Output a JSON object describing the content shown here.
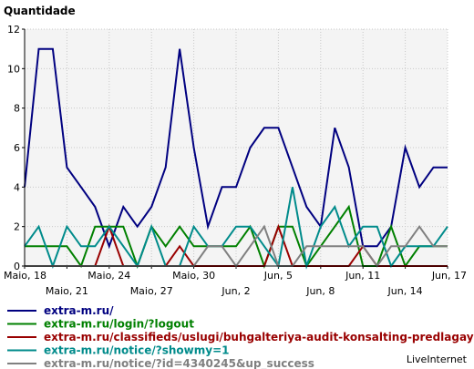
{
  "chart_data": {
    "type": "line",
    "ylabel": "Quantidade",
    "ylim": [
      0,
      12
    ],
    "yticks": [
      0,
      2,
      4,
      6,
      8,
      10,
      12
    ],
    "grid": true,
    "x_count": 31,
    "x_ticks": [
      {
        "index": 0,
        "label": "Maio, 18",
        "row": 1
      },
      {
        "index": 3,
        "label": "Maio, 21",
        "row": 2
      },
      {
        "index": 6,
        "label": "Maio, 24",
        "row": 1
      },
      {
        "index": 9,
        "label": "Maio, 27",
        "row": 2
      },
      {
        "index": 12,
        "label": "Maio, 30",
        "row": 1
      },
      {
        "index": 15,
        "label": "Jun, 2",
        "row": 2
      },
      {
        "index": 18,
        "label": "Jun, 5",
        "row": 1
      },
      {
        "index": 21,
        "label": "Jun, 8",
        "row": 2
      },
      {
        "index": 24,
        "label": "Jun, 11",
        "row": 1
      },
      {
        "index": 27,
        "label": "Jun, 14",
        "row": 2
      },
      {
        "index": 30,
        "label": "Jun, 17",
        "row": 1
      }
    ],
    "legend_placement": "bottom",
    "series": [
      {
        "name": "extra-m.ru/",
        "color": "#000080",
        "values": [
          4,
          11,
          11,
          5,
          4,
          3,
          1,
          3,
          2,
          3,
          5,
          11,
          6,
          2,
          4,
          4,
          6,
          7,
          7,
          5,
          3,
          2,
          7,
          5,
          1,
          1,
          2,
          6,
          4,
          5,
          5
        ]
      },
      {
        "name": "extra-m.ru/login/?logout",
        "color": "#008000",
        "values": [
          1,
          1,
          1,
          1,
          0,
          2,
          2,
          2,
          0,
          2,
          1,
          2,
          1,
          1,
          1,
          1,
          2,
          0,
          2,
          2,
          0,
          1,
          2,
          3,
          0,
          0,
          2,
          0,
          1,
          1,
          1
        ]
      },
      {
        "name": "extra-m.ru/classifieds/uslugi/buhgalteriya-audit-konsalting-predlagayu/all/",
        "color": "#990000",
        "values": [
          0,
          0,
          0,
          0,
          0,
          0,
          2,
          0,
          0,
          0,
          0,
          1,
          0,
          0,
          0,
          0,
          0,
          0,
          2,
          0,
          0,
          0,
          0,
          0,
          1,
          0,
          0,
          0,
          0,
          0,
          0
        ]
      },
      {
        "name": "extra-m.ru/notice/?showmy=1",
        "color": "#008b8b",
        "values": [
          1,
          2,
          0,
          2,
          1,
          1,
          2,
          1,
          0,
          2,
          0,
          0,
          2,
          1,
          1,
          2,
          2,
          1,
          0,
          4,
          0,
          2,
          3,
          1,
          2,
          2,
          0,
          1,
          1,
          1,
          2
        ]
      },
      {
        "name": "extra-m.ru/notice/?id=4340245&up_success",
        "color": "#808080",
        "values": [
          0,
          0,
          0,
          0,
          0,
          0,
          0,
          0,
          0,
          0,
          0,
          0,
          0,
          1,
          1,
          0,
          1,
          2,
          0,
          0,
          1,
          1,
          1,
          1,
          1,
          0,
          1,
          1,
          2,
          1,
          1
        ]
      }
    ]
  },
  "footer": {
    "brand": "LiveInternet"
  }
}
